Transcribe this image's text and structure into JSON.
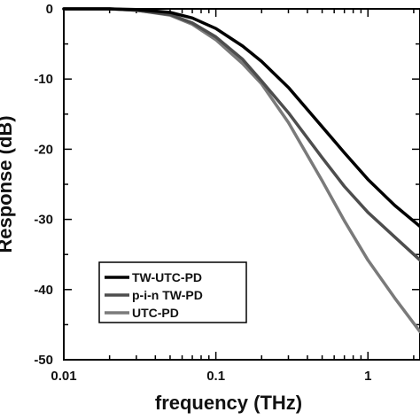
{
  "chart_data": {
    "type": "line",
    "xlabel": "frequency (THz)",
    "ylabel": "Response (dB)",
    "xscale": "log",
    "xlim": [
      0.01,
      2.2
    ],
    "ylim": [
      -50,
      0
    ],
    "x_ticks": [
      {
        "value": 0.01,
        "label": "0.01"
      },
      {
        "value": 0.1,
        "label": "0.1"
      },
      {
        "value": 1,
        "label": "1"
      }
    ],
    "y_ticks": [
      {
        "value": 0,
        "label": "0"
      },
      {
        "value": -10,
        "label": "-10"
      },
      {
        "value": -20,
        "label": "-20"
      },
      {
        "value": -30,
        "label": "-30"
      },
      {
        "value": -40,
        "label": "-40"
      },
      {
        "value": -50,
        "label": "-50"
      }
    ],
    "legend_position": "bottom-left",
    "grid": false,
    "series": [
      {
        "name": "TW-UTC-PD",
        "color": "#000000",
        "x": [
          0.01,
          0.02,
          0.03,
          0.05,
          0.07,
          0.1,
          0.15,
          0.2,
          0.3,
          0.5,
          0.7,
          1.0,
          1.5,
          2.2
        ],
        "y": [
          0,
          0,
          -0.1,
          -0.5,
          -1.3,
          -2.8,
          -5.3,
          -7.5,
          -11.2,
          -16.8,
          -20.5,
          -24.3,
          -28.0,
          -31.0
        ]
      },
      {
        "name": "p-i-n TW-PD",
        "color": "#4d4d4d",
        "x": [
          0.01,
          0.02,
          0.03,
          0.05,
          0.07,
          0.1,
          0.15,
          0.2,
          0.3,
          0.5,
          0.7,
          1.0,
          1.5,
          2.2
        ],
        "y": [
          0,
          0,
          -0.2,
          -0.8,
          -2.0,
          -4.0,
          -7.2,
          -10.3,
          -14.8,
          -21.2,
          -25.3,
          -29.0,
          -32.5,
          -35.8
        ]
      },
      {
        "name": "UTC-PD",
        "color": "#7a7a7a",
        "x": [
          0.01,
          0.02,
          0.03,
          0.05,
          0.07,
          0.1,
          0.15,
          0.2,
          0.3,
          0.5,
          0.7,
          1.0,
          1.5,
          2.2
        ],
        "y": [
          0,
          0,
          -0.2,
          -0.9,
          -2.2,
          -4.4,
          -7.8,
          -10.7,
          -16.2,
          -24.5,
          -30.2,
          -35.8,
          -41.2,
          -46.0
        ]
      }
    ]
  }
}
